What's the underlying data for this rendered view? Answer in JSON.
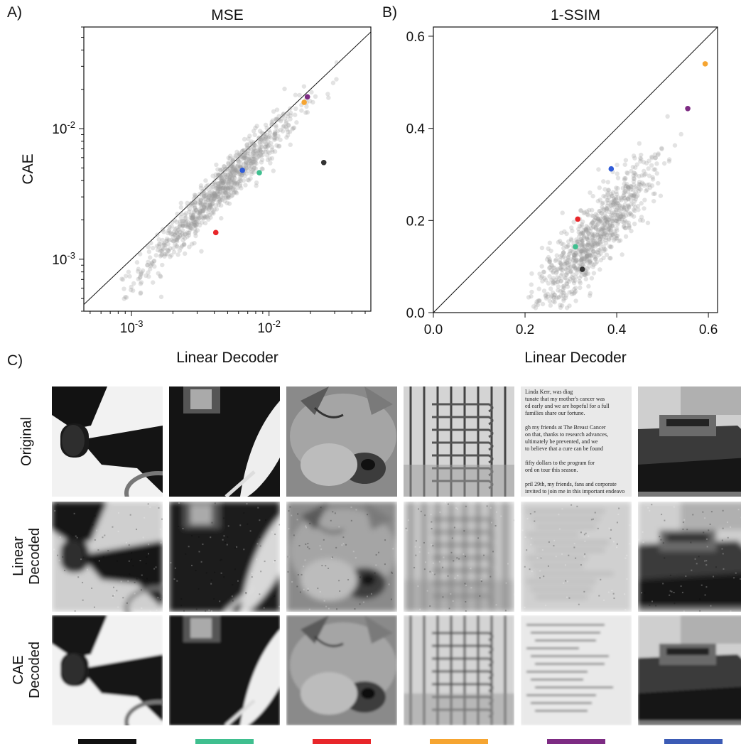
{
  "figure": {
    "panel_a_label": "A)",
    "panel_b_label": "B)",
    "panel_c_label": "C)",
    "row_labels": [
      [
        "Original"
      ],
      [
        "Linear",
        "Decoded"
      ],
      [
        "CAE",
        "Decoded"
      ]
    ],
    "legend_colors": [
      "#111111",
      "#3fbf8f",
      "#e8262a",
      "#f6a531",
      "#7d2b83",
      "#3b5bb5"
    ],
    "image_subjects": [
      "fan",
      "feather-and-bottle",
      "cougar",
      "turnstile-gate",
      "text-page",
      "lifeboat"
    ]
  },
  "chart_data": [
    {
      "type": "scatter",
      "title": "MSE",
      "xlabel": "Linear Decoder",
      "ylabel": "CAE",
      "x_scale": "log",
      "y_scale": "log",
      "xlim": [
        0.00045,
        0.055
      ],
      "ylim": [
        0.0004,
        0.06
      ],
      "x_tick_labels": [
        "10-3",
        "10-2"
      ],
      "y_tick_labels": [
        "10-3",
        "10-2"
      ],
      "identity_line": true,
      "background_points_color": "#999999",
      "highlighted_points": [
        {
          "x": 0.025,
          "y": 0.0055,
          "color": "#333333"
        },
        {
          "x": 0.0085,
          "y": 0.0046,
          "color": "#3fbf8f"
        },
        {
          "x": 0.0041,
          "y": 0.0016,
          "color": "#e8262a"
        },
        {
          "x": 0.018,
          "y": 0.0159,
          "color": "#f6a531"
        },
        {
          "x": 0.019,
          "y": 0.0175,
          "color": "#7d2b83"
        },
        {
          "x": 0.0064,
          "y": 0.0048,
          "color": "#2f5bd8"
        }
      ]
    },
    {
      "type": "scatter",
      "title": "1-SSIM",
      "xlabel": "Linear Decoder",
      "ylabel": "",
      "xlim": [
        0.0,
        0.62
      ],
      "ylim": [
        0.0,
        0.62
      ],
      "x_ticks": [
        0.0,
        0.2,
        0.4,
        0.6
      ],
      "x_tick_labels": [
        "0.0",
        "0.2",
        "0.4",
        "0.6"
      ],
      "y_ticks": [
        0.0,
        0.2,
        0.4,
        0.6
      ],
      "y_tick_labels": [
        "0.0",
        "0.2",
        "0.4",
        "0.6"
      ],
      "identity_line": true,
      "background_points_color": "#999999",
      "highlighted_points": [
        {
          "x": 0.325,
          "y": 0.094,
          "color": "#333333"
        },
        {
          "x": 0.31,
          "y": 0.143,
          "color": "#3fbf8f"
        },
        {
          "x": 0.315,
          "y": 0.203,
          "color": "#e8262a"
        },
        {
          "x": 0.593,
          "y": 0.54,
          "color": "#f6a531"
        },
        {
          "x": 0.555,
          "y": 0.443,
          "color": "#7d2b83"
        },
        {
          "x": 0.388,
          "y": 0.312,
          "color": "#2f5bd8"
        }
      ]
    }
  ]
}
